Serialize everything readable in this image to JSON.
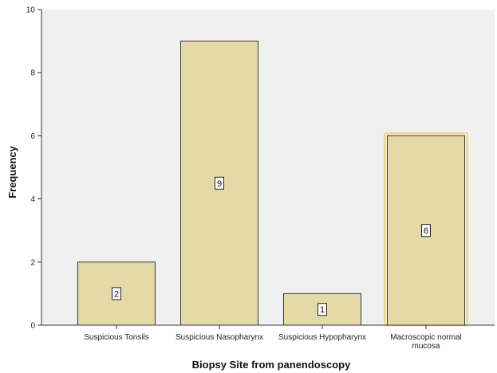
{
  "chart_data": {
    "type": "bar",
    "title": "",
    "xlabel": "Biopsy Site from panendoscopy",
    "ylabel": "Frequency",
    "ylim": [
      0,
      10
    ],
    "yticks": [
      0,
      2,
      4,
      6,
      8,
      10
    ],
    "categories": [
      [
        "Suspicious Tonsils"
      ],
      [
        "Suspicious Nasopharynx"
      ],
      [
        "Suspicious Hypopharynx"
      ],
      [
        "Macroscopic normal",
        "mucosa"
      ]
    ],
    "values": [
      2,
      9,
      1,
      6
    ],
    "data_labels": [
      "2",
      "9",
      "1",
      "6"
    ],
    "highlighted_index": 3,
    "grid": false,
    "legend": "none",
    "colors": {
      "plot_background": "#f0f0f0",
      "bar_fill": "#e5d9a8",
      "bar_stroke": "#3a3a3a",
      "highlight_stroke": "#f3d995",
      "axis": "#333333",
      "label_box_fill": "#ffffff",
      "label_box_stroke": "#222222"
    }
  }
}
